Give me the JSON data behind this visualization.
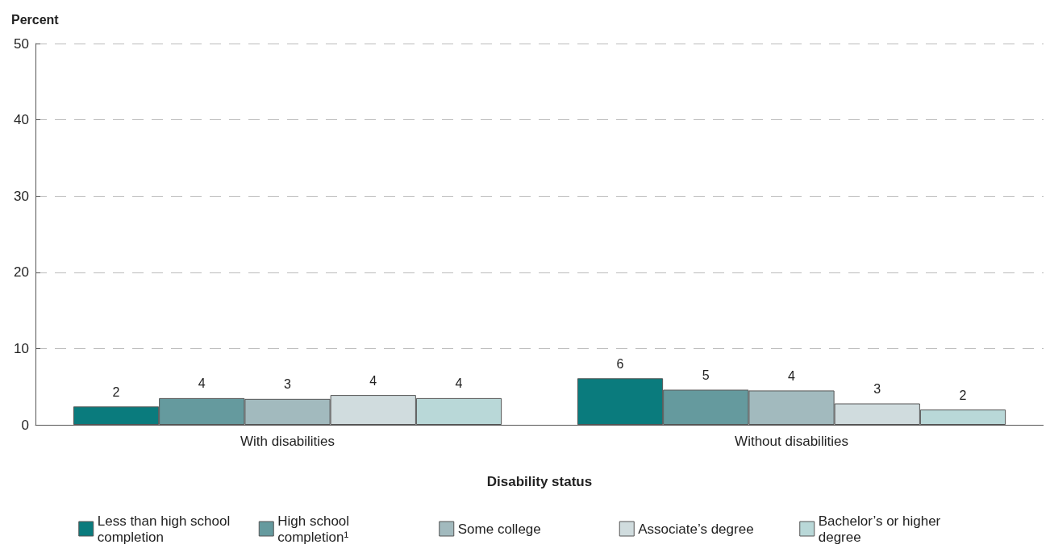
{
  "chart_data": {
    "type": "bar",
    "ylabel": "Percent",
    "xlabel": "Disability status",
    "categories": [
      "With disabilities",
      "Without disabilities"
    ],
    "series": [
      {
        "name": "Less than high school completion",
        "color": "#0a7b7d",
        "values": [
          2.4,
          6.1
        ],
        "value_labels": [
          "2",
          "6"
        ]
      },
      {
        "name": "High school completion¹",
        "color": "#659a9e",
        "values": [
          3.5,
          4.6
        ],
        "value_labels": [
          "4",
          "5"
        ]
      },
      {
        "name": "Some college",
        "color": "#a2babe",
        "values": [
          3.4,
          4.5
        ],
        "value_labels": [
          "3",
          "4"
        ]
      },
      {
        "name": "Associate’s degree",
        "color": "#d0dcde",
        "values": [
          3.9,
          2.8
        ],
        "value_labels": [
          "4",
          "3"
        ]
      },
      {
        "name": "Bachelor’s or higher degree",
        "color": "#b9d8d8",
        "values": [
          3.5,
          2.0
        ],
        "value_labels": [
          "4",
          "2"
        ]
      }
    ],
    "ylim": [
      0,
      50
    ],
    "yticks": [
      0,
      10,
      20,
      30,
      40,
      50
    ],
    "grid": "y",
    "legend": "bottom"
  }
}
